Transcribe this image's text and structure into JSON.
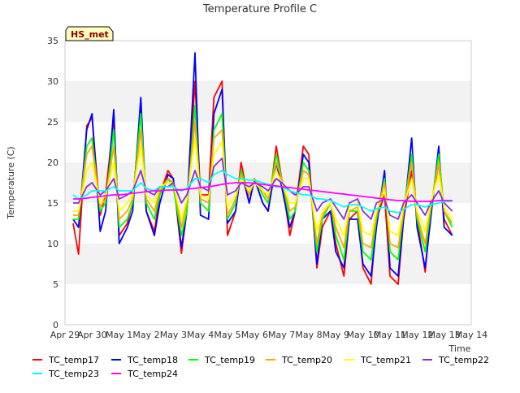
{
  "chart_data": {
    "type": "line",
    "title": "Temperature Profile C",
    "xlabel": "Time",
    "ylabel": "Temperature (C)",
    "ylim": [
      0,
      35
    ],
    "xlim": [
      0,
      15
    ],
    "y_ticks": [
      0,
      5,
      10,
      15,
      20,
      25,
      30,
      35
    ],
    "x_ticks": [
      {
        "x": 0,
        "label": "Apr 29"
      },
      {
        "x": 1,
        "label": "Apr 30"
      },
      {
        "x": 2,
        "label": "May 1"
      },
      {
        "x": 3,
        "label": "May 2"
      },
      {
        "x": 4,
        "label": "May 3"
      },
      {
        "x": 5,
        "label": "May 4"
      },
      {
        "x": 6,
        "label": "May 5"
      },
      {
        "x": 7,
        "label": "May 6"
      },
      {
        "x": 8,
        "label": "May 7"
      },
      {
        "x": 9,
        "label": "May 8"
      },
      {
        "x": 10,
        "label": "May 9"
      },
      {
        "x": 11,
        "label": "May 10"
      },
      {
        "x": 12,
        "label": "May 11"
      },
      {
        "x": 13,
        "label": "May 12"
      },
      {
        "x": 14,
        "label": "May 13"
      },
      {
        "x": 15,
        "label": "May 14"
      }
    ],
    "grid": "horizontal bands",
    "legend_position": "bottom",
    "site_label": "HS_met",
    "x": [
      0.3,
      0.5,
      0.8,
      1.0,
      1.3,
      1.5,
      1.8,
      2.0,
      2.3,
      2.5,
      2.8,
      3.0,
      3.3,
      3.5,
      3.8,
      4.0,
      4.3,
      4.5,
      4.8,
      5.0,
      5.3,
      5.5,
      5.8,
      6.0,
      6.3,
      6.5,
      6.8,
      7.0,
      7.3,
      7.5,
      7.8,
      8.0,
      8.3,
      8.5,
      8.8,
      9.0,
      9.3,
      9.5,
      9.8,
      10.0,
      10.3,
      10.5,
      10.8,
      11.0,
      11.3,
      11.5,
      11.8,
      12.0,
      12.3,
      12.5,
      12.8,
      13.0,
      13.3,
      13.5,
      13.8,
      14.0,
      14.3
    ],
    "series": [
      {
        "name": "TC_temp17",
        "color": "#ff0000",
        "values": [
          12.5,
          8.7,
          24.5,
          25.5,
          13.5,
          16,
          25.5,
          11,
          12.5,
          15,
          26.5,
          14,
          11.5,
          16,
          19,
          18,
          8.8,
          14,
          30,
          16,
          16,
          28,
          30,
          11,
          14,
          20,
          15,
          18,
          15,
          14,
          22,
          18,
          11,
          14,
          22,
          21,
          7,
          12,
          14,
          10,
          6,
          13,
          14,
          7,
          5,
          13,
          16,
          6,
          5,
          13,
          19,
          13,
          6.5,
          14,
          20,
          13,
          11
        ]
      },
      {
        "name": "TC_temp18",
        "color": "#0000ff",
        "values": [
          13,
          12,
          24,
          26,
          11.5,
          14,
          26.5,
          10,
          12,
          14,
          28,
          14,
          11,
          15,
          18.5,
          18,
          9.5,
          14,
          33.5,
          13.5,
          13,
          26,
          29,
          12.5,
          14,
          19,
          15,
          18,
          15,
          14,
          20,
          17,
          12,
          14,
          21,
          20,
          7.5,
          13,
          14,
          9,
          7,
          13,
          13,
          7.5,
          6,
          12,
          19,
          7,
          6,
          13,
          23,
          12,
          7,
          13,
          22,
          12,
          11
        ]
      },
      {
        "name": "TC_temp19",
        "color": "#00ff00",
        "values": [
          13,
          13,
          22,
          23,
          14,
          15,
          24,
          12,
          13,
          15,
          26,
          15,
          13,
          16,
          18,
          17,
          11,
          14,
          27,
          15,
          14,
          24,
          26,
          13,
          15,
          19,
          16,
          18,
          16,
          15,
          21,
          18,
          13,
          14,
          20,
          19,
          9,
          13,
          15,
          11,
          8,
          14,
          14,
          9,
          8,
          13,
          18,
          9,
          8,
          14,
          21,
          13,
          9,
          14,
          21,
          14,
          12
        ]
      },
      {
        "name": "TC_temp20",
        "color": "#ffa500",
        "values": [
          13.5,
          13.5,
          21,
          22,
          14.5,
          15.5,
          22,
          13,
          14,
          15.5,
          24,
          15.5,
          14,
          16.5,
          18,
          17.5,
          12,
          15,
          25,
          15.5,
          15,
          23,
          24,
          13.5,
          15.5,
          18.5,
          16,
          18,
          16.5,
          15.5,
          20,
          18,
          14,
          14.5,
          19,
          18.5,
          10,
          13.5,
          15,
          12,
          9.5,
          14,
          14.5,
          10,
          9.5,
          13.5,
          17.5,
          10,
          9.5,
          14,
          20,
          13.5,
          10,
          14.5,
          20,
          14,
          12.5
        ]
      },
      {
        "name": "TC_temp21",
        "color": "#ffff00",
        "values": [
          14,
          14,
          19,
          20,
          15,
          16,
          20,
          14,
          15,
          16,
          22,
          16,
          15,
          17,
          17.5,
          17.5,
          13,
          15.5,
          23,
          16,
          15.5,
          21,
          22.5,
          14.5,
          16,
          18,
          16.5,
          17.5,
          16.5,
          16,
          19,
          17.5,
          15,
          15,
          18,
          18,
          11.5,
          14,
          15,
          13,
          11,
          14.5,
          15,
          11.5,
          11,
          14,
          16.5,
          11.5,
          11,
          14.5,
          18,
          14,
          11.5,
          15,
          18.5,
          14.5,
          13
        ]
      },
      {
        "name": "TC_temp22",
        "color": "#8a2be2",
        "values": [
          15,
          15,
          17,
          17.5,
          16,
          16.5,
          18,
          15.5,
          16,
          16.5,
          19,
          16.5,
          16,
          17,
          17,
          17.5,
          15,
          16,
          19,
          17,
          16.5,
          19.5,
          20.5,
          16,
          16.5,
          17.5,
          17,
          17.5,
          17,
          16.5,
          18,
          17.5,
          16.5,
          16,
          17,
          17,
          14,
          15,
          15.5,
          14.5,
          13,
          15,
          15.5,
          14,
          13,
          15,
          15.5,
          13.5,
          13,
          15,
          16,
          15,
          13.5,
          15,
          16.5,
          15,
          14
        ]
      },
      {
        "name": "TC_temp23",
        "color": "#00ffff",
        "values": [
          16,
          15.5,
          16,
          16.5,
          16.5,
          16.5,
          17,
          16.5,
          16.5,
          16.5,
          17.5,
          16.8,
          16.5,
          17,
          17,
          17,
          16.5,
          16.8,
          18,
          18,
          17.5,
          18.5,
          19,
          18.5,
          18,
          18,
          17.8,
          17.8,
          17.5,
          17.3,
          17,
          17,
          16.5,
          16.3,
          16,
          16,
          15.5,
          15.5,
          15.3,
          15,
          14.5,
          14.8,
          14.8,
          14.5,
          14,
          14.3,
          14.5,
          14,
          13.8,
          14.2,
          14.8,
          14.8,
          14.5,
          14.8,
          15,
          15.2,
          15.2
        ]
      },
      {
        "name": "TC_temp24",
        "color": "#ff00ff",
        "values": [
          15.5,
          15.5,
          15.6,
          15.7,
          15.8,
          15.9,
          16,
          16,
          16.1,
          16.2,
          16.3,
          16.4,
          16.5,
          16.5,
          16.6,
          16.6,
          16.6,
          16.7,
          16.8,
          16.9,
          17,
          17.1,
          17.3,
          17.4,
          17.5,
          17.5,
          17.5,
          17.4,
          17.3,
          17.2,
          17.1,
          17,
          16.9,
          16.8,
          16.7,
          16.6,
          16.5,
          16.4,
          16.3,
          16.2,
          16.1,
          16,
          15.9,
          15.8,
          15.7,
          15.6,
          15.5,
          15.4,
          15.3,
          15.3,
          15.2,
          15.2,
          15.2,
          15.2,
          15.3,
          15.3,
          15.3
        ]
      }
    ]
  }
}
